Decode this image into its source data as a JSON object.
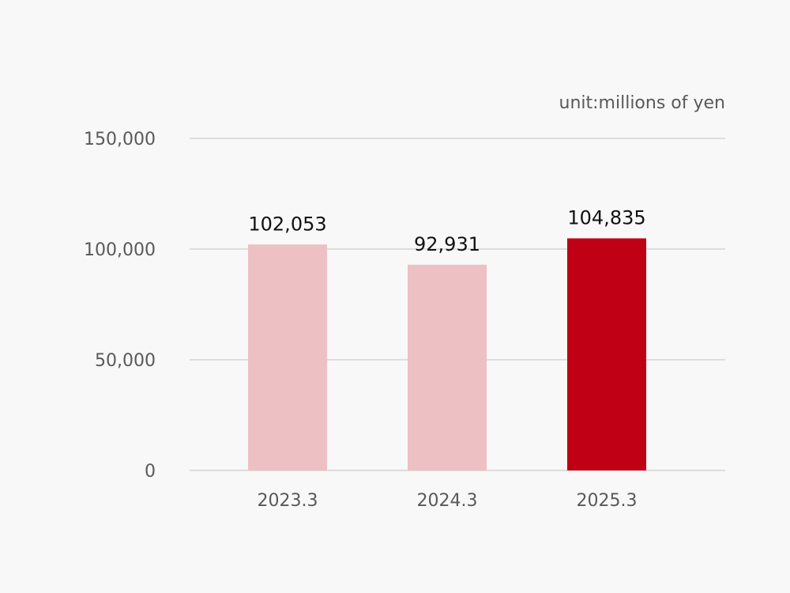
{
  "chart_data": {
    "type": "bar",
    "unit_label": "unit:millions of yen",
    "categories": [
      "2023.3",
      "2024.3",
      "2025.3"
    ],
    "values": [
      102053,
      92931,
      104835
    ],
    "value_labels": [
      "102,053",
      "92,931",
      "104,835"
    ],
    "ylim": [
      0,
      150000
    ],
    "yticks": [
      0,
      50000,
      100000,
      150000
    ],
    "ytick_labels": [
      "0",
      "50,000",
      "100,000",
      "150,000"
    ],
    "grid": true,
    "legend": "none",
    "colors": {
      "past": "#edc0c3",
      "latest": "#c00014"
    },
    "bar_color_keys": [
      "past",
      "past",
      "latest"
    ]
  }
}
